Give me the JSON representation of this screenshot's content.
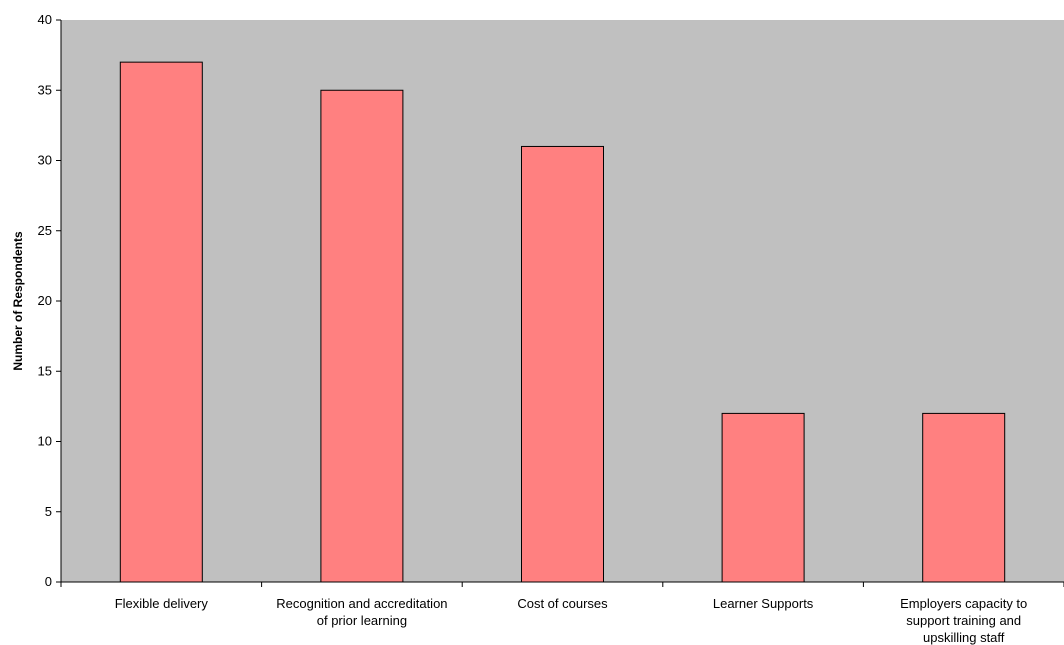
{
  "chart_data": {
    "type": "bar",
    "title": "",
    "xlabel": "",
    "ylabel": "Number of Respondents",
    "ylim": [
      0,
      40
    ],
    "yticks": [
      0,
      5,
      10,
      15,
      20,
      25,
      30,
      35,
      40
    ],
    "grid": false,
    "legend": "none",
    "categories": [
      [
        "Flexible delivery"
      ],
      [
        "Recognition and accreditation",
        "of prior learning"
      ],
      [
        "Cost of courses"
      ],
      [
        "Learner Supports"
      ],
      [
        "Employers capacity to",
        "support training and",
        "upskilling staff"
      ]
    ],
    "values": [
      37,
      35,
      31,
      12,
      12
    ],
    "colors": {
      "plot_background": "#c0c0c0",
      "bar_fill": "#ff8080",
      "bar_stroke": "#000000"
    }
  }
}
